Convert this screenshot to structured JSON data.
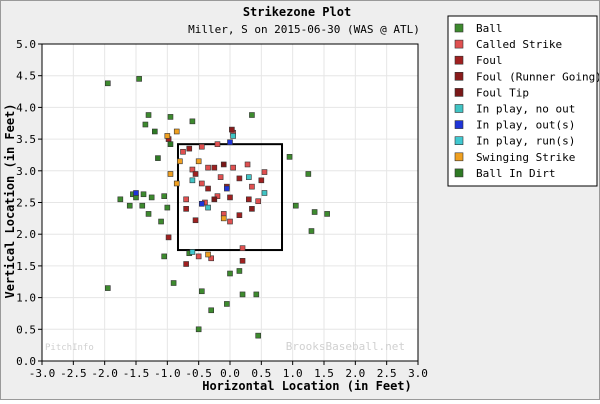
{
  "colors": {
    "background": "#eeeeee",
    "plot_bg": "#ffffff",
    "grid": "#e6e6e6",
    "strike_zone": "#000000"
  },
  "chart_data": {
    "type": "scatter",
    "title": "Strikezone Plot",
    "subtitle": "Miller, S on 2015-06-30 (WAS @ ATL)",
    "xlabel": "Horizontal Location (in Feet)",
    "ylabel": "Vertical Location (in Feet)",
    "xlim": [
      -3.0,
      3.0
    ],
    "ylim": [
      0.0,
      5.0
    ],
    "x_ticks": [
      "-3.0",
      "-2.5",
      "-2.0",
      "-1.5",
      "-1.0",
      "-0.5",
      "0.0",
      "0.5",
      "1.0",
      "1.5",
      "2.0",
      "2.5",
      "3.0"
    ],
    "y_ticks": [
      "0.0",
      "0.5",
      "1.0",
      "1.5",
      "2.0",
      "2.5",
      "3.0",
      "3.5",
      "4.0",
      "4.5",
      "5.0"
    ],
    "grid": true,
    "legend_position": "top-right outside",
    "strike_zone": {
      "x": [
        -0.83,
        0.83
      ],
      "y": [
        1.75,
        3.42
      ]
    },
    "watermark_left": "PitchInfo",
    "watermark_right": "BrooksBaseball.net",
    "series": [
      {
        "name": "Ball",
        "color": "#3d8a2e",
        "points": [
          [
            -1.95,
            4.38
          ],
          [
            -1.45,
            4.45
          ],
          [
            -1.3,
            3.88
          ],
          [
            -1.35,
            3.73
          ],
          [
            -0.95,
            3.85
          ],
          [
            -0.6,
            3.78
          ],
          [
            0.35,
            3.88
          ],
          [
            -1.55,
            2.63
          ],
          [
            -1.38,
            2.63
          ],
          [
            -1.05,
            2.6
          ],
          [
            -1.25,
            2.58
          ],
          [
            -1.5,
            2.58
          ],
          [
            -1.75,
            2.55
          ],
          [
            -1.6,
            2.45
          ],
          [
            -1.4,
            2.45
          ],
          [
            -1.0,
            2.42
          ],
          [
            -1.3,
            2.32
          ],
          [
            -1.1,
            2.2
          ],
          [
            0.95,
            3.22
          ],
          [
            1.25,
            2.95
          ],
          [
            1.05,
            2.45
          ],
          [
            1.35,
            2.35
          ],
          [
            1.55,
            2.32
          ],
          [
            1.3,
            2.05
          ],
          [
            -1.05,
            1.65
          ],
          [
            -1.95,
            1.15
          ],
          [
            -0.65,
            1.7
          ],
          [
            -0.9,
            1.23
          ],
          [
            -0.45,
            1.1
          ],
          [
            -0.3,
            0.8
          ],
          [
            -0.05,
            0.9
          ],
          [
            0.0,
            1.38
          ],
          [
            0.15,
            1.42
          ],
          [
            0.2,
            1.05
          ],
          [
            0.42,
            1.05
          ],
          [
            -0.5,
            0.5
          ],
          [
            0.45,
            0.4
          ]
        ]
      },
      {
        "name": "Called Strike",
        "color": "#e05050",
        "points": [
          [
            -0.75,
            3.3
          ],
          [
            -0.45,
            3.38
          ],
          [
            -0.2,
            3.42
          ],
          [
            0.05,
            3.6
          ],
          [
            -0.6,
            3.02
          ],
          [
            -0.35,
            3.05
          ],
          [
            -0.15,
            2.9
          ],
          [
            0.05,
            3.05
          ],
          [
            0.28,
            3.1
          ],
          [
            0.55,
            2.98
          ],
          [
            -0.45,
            2.8
          ],
          [
            -0.2,
            2.6
          ],
          [
            0.35,
            2.75
          ],
          [
            -0.7,
            2.55
          ],
          [
            -0.4,
            2.5
          ],
          [
            0.45,
            2.52
          ],
          [
            -0.1,
            2.32
          ],
          [
            0.0,
            2.2
          ],
          [
            0.2,
            1.78
          ],
          [
            -0.3,
            1.62
          ],
          [
            -0.5,
            1.65
          ]
        ]
      },
      {
        "name": "Foul",
        "color": "#a02020",
        "points": [
          [
            -0.98,
            3.5
          ],
          [
            -0.65,
            3.35
          ],
          [
            -0.55,
            2.95
          ],
          [
            -0.25,
            3.05
          ],
          [
            -0.05,
            2.75
          ],
          [
            0.15,
            2.88
          ],
          [
            0.5,
            2.85
          ],
          [
            -0.35,
            2.72
          ],
          [
            0.0,
            2.58
          ],
          [
            0.3,
            2.55
          ],
          [
            -0.7,
            2.4
          ],
          [
            0.15,
            2.3
          ],
          [
            -0.98,
            1.95
          ],
          [
            -0.7,
            1.53
          ],
          [
            0.2,
            1.58
          ],
          [
            -0.55,
            2.22
          ]
        ]
      },
      {
        "name": "Foul (Runner Going)",
        "color": "#8a1c1c",
        "points": [
          [
            0.03,
            3.65
          ],
          [
            0.35,
            2.4
          ]
        ]
      },
      {
        "name": "Foul Tip",
        "color": "#7a1818",
        "points": [
          [
            -0.1,
            3.1
          ],
          [
            -0.25,
            2.55
          ]
        ]
      },
      {
        "name": "In play, no out",
        "color": "#40c4c4",
        "points": [
          [
            0.05,
            3.55
          ],
          [
            -0.6,
            2.85
          ],
          [
            0.55,
            2.65
          ],
          [
            -0.35,
            2.42
          ],
          [
            0.3,
            2.9
          ]
        ]
      },
      {
        "name": "In play, out(s)",
        "color": "#1e34d8",
        "points": [
          [
            -1.5,
            2.65
          ],
          [
            -0.05,
            2.72
          ],
          [
            0.0,
            3.45
          ],
          [
            -0.45,
            2.48
          ]
        ]
      },
      {
        "name": "In play, run(s)",
        "color": "#40c8d0",
        "points": [
          [
            -0.6,
            1.72
          ]
        ]
      },
      {
        "name": "Swinging Strike",
        "color": "#f0a020",
        "points": [
          [
            -1.0,
            3.55
          ],
          [
            -0.85,
            3.62
          ],
          [
            -0.8,
            3.15
          ],
          [
            -0.95,
            2.95
          ],
          [
            -0.85,
            2.8
          ],
          [
            -0.5,
            3.15
          ],
          [
            -0.1,
            2.25
          ],
          [
            -0.35,
            1.68
          ]
        ]
      },
      {
        "name": "Ball In Dirt",
        "color": "#2e7a24",
        "points": [
          [
            -1.2,
            3.62
          ],
          [
            -1.15,
            3.2
          ],
          [
            -0.95,
            3.42
          ]
        ]
      }
    ]
  }
}
